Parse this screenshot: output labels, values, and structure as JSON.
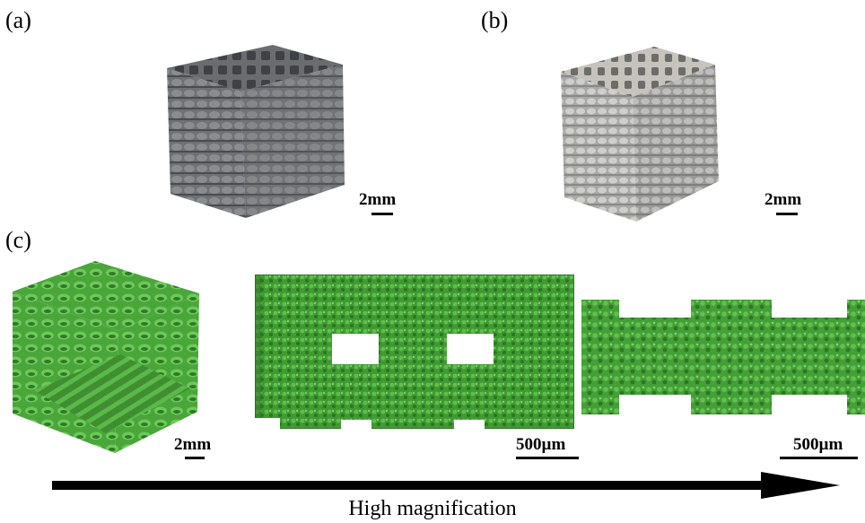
{
  "panels": [
    {
      "label": "(a)",
      "scale": "2mm"
    },
    {
      "label": "(b)",
      "scale": "2mm"
    },
    {
      "label": "(c)"
    }
  ],
  "model_scales": [
    "2mm",
    "500µm",
    "500µm"
  ],
  "arrow": {
    "caption": "High magnification"
  },
  "colors": {
    "scaffold_a": "#7a7c80",
    "scaffold_b": "#b9b9b7",
    "model_green": "#4aa63a",
    "model_dark": "#2f7a25"
  }
}
